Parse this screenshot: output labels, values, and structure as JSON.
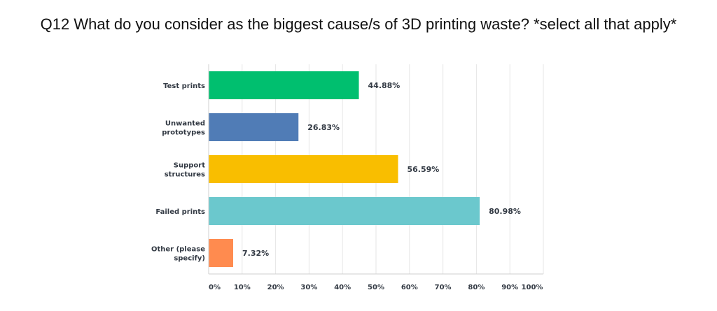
{
  "chart_data": {
    "type": "bar",
    "orientation": "horizontal",
    "title": "Q12 What do you consider as the biggest cause/s of 3D printing waste? *select all that apply*",
    "categories": [
      [
        "Test prints"
      ],
      [
        "Unwanted",
        "prototypes"
      ],
      [
        "Support",
        "structures"
      ],
      [
        "Failed prints"
      ],
      [
        "Other (please",
        "specify)"
      ]
    ],
    "values": [
      44.88,
      26.83,
      56.59,
      80.98,
      7.32
    ],
    "value_labels": [
      "44.88%",
      "26.83%",
      "56.59%",
      "80.98%",
      "7.32%"
    ],
    "bar_colors": [
      "#00bf6f",
      "#507cb6",
      "#f9be00",
      "#6bc8cd",
      "#ff8b4f"
    ],
    "xlim": [
      0,
      100
    ],
    "xticks": [
      "0%",
      "10%",
      "20%",
      "30%",
      "40%",
      "50%",
      "60%",
      "70%",
      "80%",
      "90%",
      "100%"
    ],
    "grid": true
  }
}
